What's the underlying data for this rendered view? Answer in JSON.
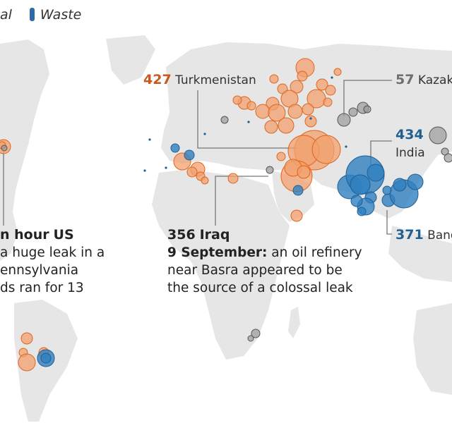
{
  "legend": {
    "partial_label": "al",
    "waste_label": "Waste",
    "waste_color": "#2d6aa6"
  },
  "colors": {
    "oil_gas": "#f2a06e",
    "oil_gas_stroke": "#e0651c",
    "waste": "#2f7fbf",
    "coal_other": "#9a9a9a",
    "land": "#e6e6e6",
    "water": "#ffffff",
    "number_orange": "#c75a1c",
    "number_blue": "#1f5f92",
    "number_grey": "#6e6e6e"
  },
  "annotations": {
    "turkmenistan": {
      "value": "427",
      "name": "Turkmenistan"
    },
    "kazakhstan": {
      "value": "57",
      "name": "Kazakh"
    },
    "india": {
      "value": "434",
      "name": "India"
    },
    "bangladesh": {
      "value": "371",
      "name": "Bang"
    },
    "us": {
      "headline_partial": "n hour",
      "name": "US",
      "lines": [
        "a huge leak in a",
        "ennsylvania",
        "ds ran for 13"
      ]
    },
    "iraq": {
      "value": "356",
      "name": "Iraq",
      "date": "9 September:",
      "line1_rest": " an oil refinery",
      "line2": "near Basra appeared to be",
      "line3": "the source of a colossal leak"
    }
  }
}
